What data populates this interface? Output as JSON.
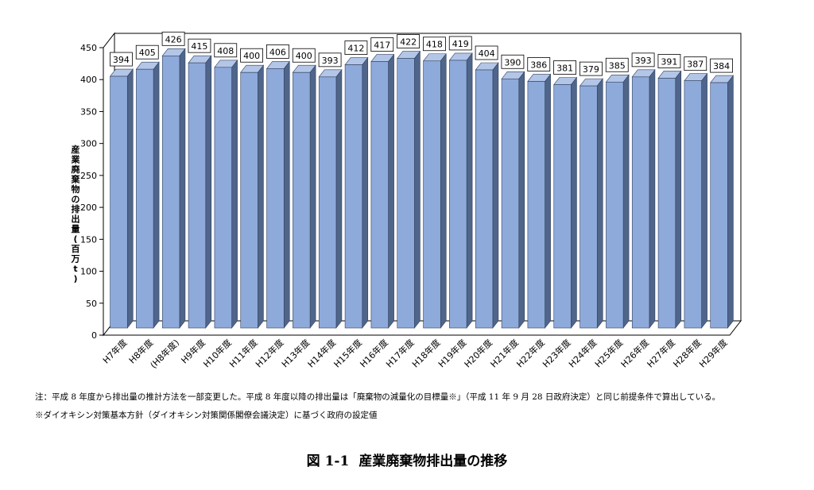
{
  "chart_data": {
    "type": "bar",
    "categories": [
      "H7年度",
      "H8年度",
      "(H8年度)",
      "H9年度",
      "H10年度",
      "H11年度",
      "H12年度",
      "H13年度",
      "H14年度",
      "H15年度",
      "H16年度",
      "H17年度",
      "H18年度",
      "H19年度",
      "H20年度",
      "H21年度",
      "H22年度",
      "H23年度",
      "H24年度",
      "H25年度",
      "H26年度",
      "H27年度",
      "H28年度",
      "H29年度"
    ],
    "values": [
      394,
      405,
      426,
      415,
      408,
      400,
      406,
      400,
      393,
      412,
      417,
      422,
      418,
      419,
      404,
      390,
      386,
      381,
      379,
      385,
      393,
      391,
      387,
      384
    ],
    "ylabel": "産業廃棄物の排出量(百万t)",
    "ylim": [
      0,
      450
    ],
    "yticks": [
      0,
      50,
      100,
      150,
      200,
      250,
      300,
      350,
      400,
      450
    ],
    "grid": true,
    "bar_color": "#8eaadb",
    "bar_side_color": "#50658a",
    "bar_top_color": "#b4c6e7"
  },
  "notes": {
    "note1": "注：平成 8 年度から排出量の推計方法を一部変更した。平成 8 年度以降の排出量は「廃棄物の減量化の目標量※」（平成 11 年 9 月 28 日政府決定）と同じ前提条件で算出している。",
    "note2": "※ダイオキシン対策基本方針（ダイオキシン対策関係閣僚会議決定）に基づく政府の設定値"
  },
  "figure": {
    "number": "図 1-1",
    "title": "産業廃棄物排出量の推移"
  }
}
